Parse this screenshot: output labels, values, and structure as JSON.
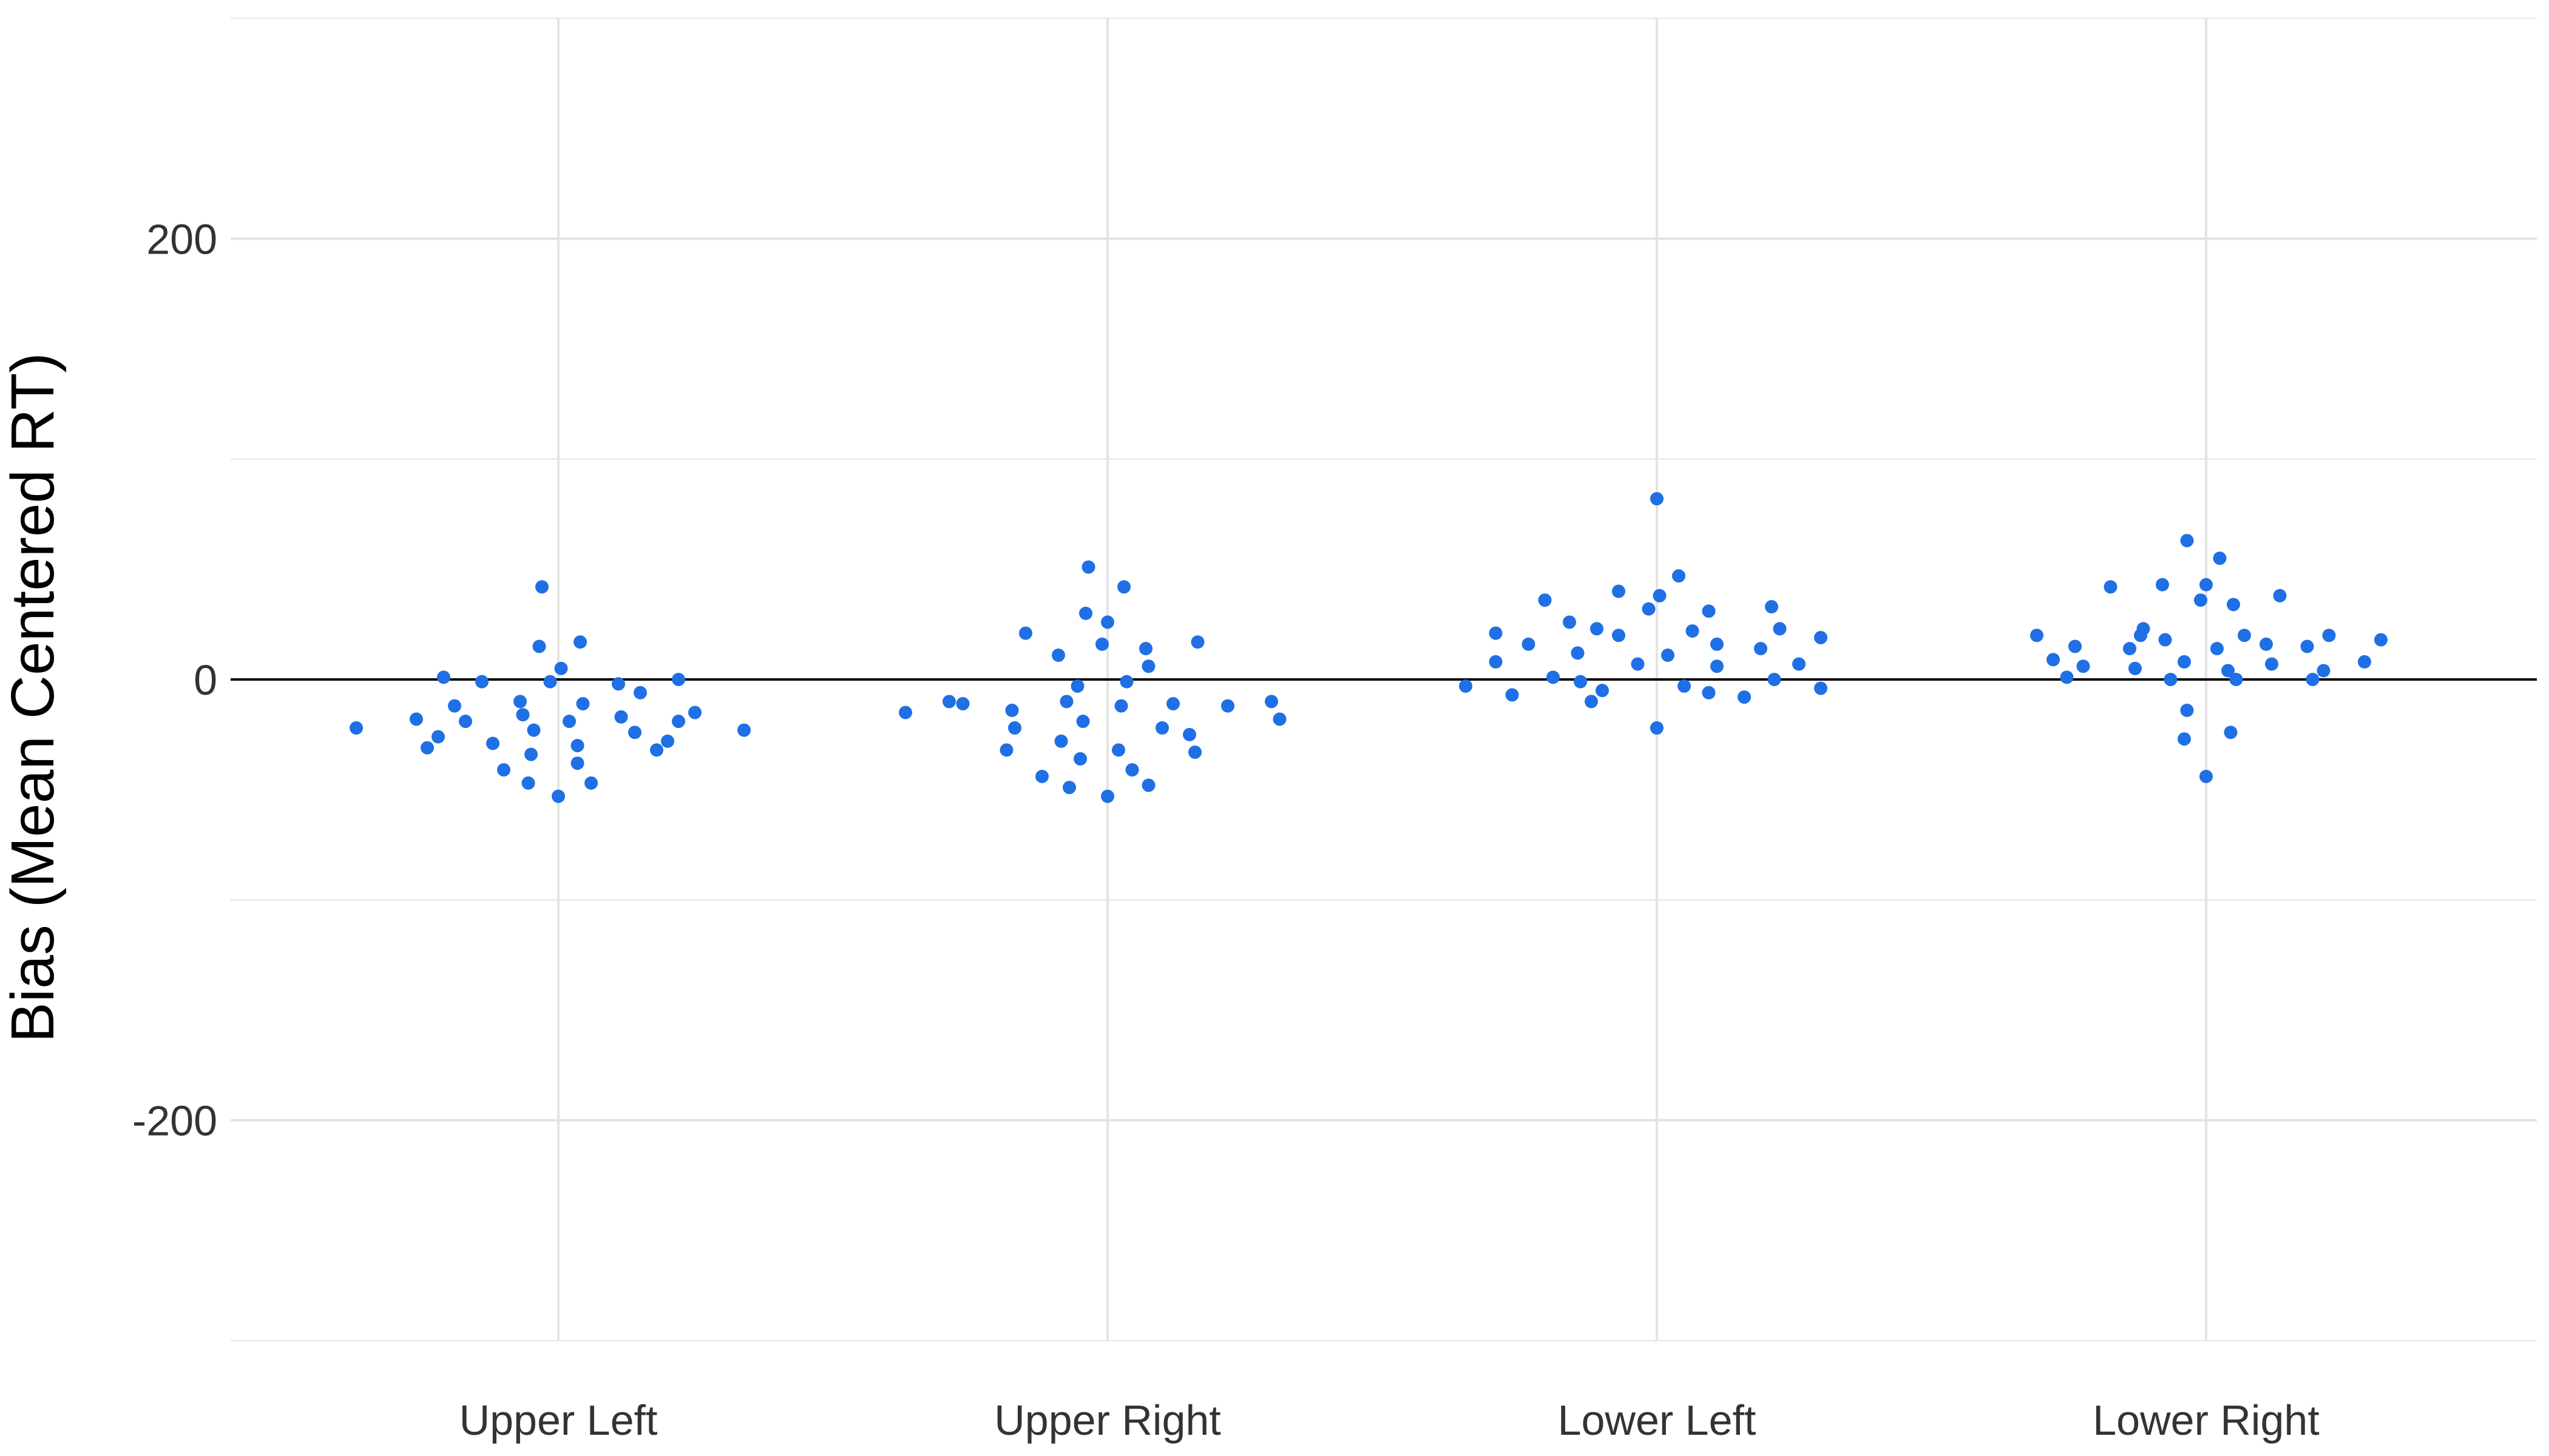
{
  "chart_data": {
    "type": "scatter",
    "title": "",
    "xlabel": "",
    "ylabel": "Bias (Mean Centered RT)",
    "ylim": [
      -300,
      300
    ],
    "yticks": [
      {
        "value": 200,
        "label": "200"
      },
      {
        "value": 0,
        "label": "0"
      },
      {
        "value": -200,
        "label": "-200"
      }
    ],
    "y_minor_gridlines": [
      300,
      100,
      -100,
      -300
    ],
    "reference_line": 0,
    "grid": true,
    "legend": "none",
    "point_color": "#1f6fe5",
    "categories": [
      "Upper Left",
      "Upper Right",
      "Lower Left",
      "Lower Right"
    ],
    "series": [
      {
        "category": "Upper Left",
        "points": [
          {
            "x": -0.37,
            "y": -22
          },
          {
            "x": -0.26,
            "y": -18
          },
          {
            "x": -0.24,
            "y": -31
          },
          {
            "x": -0.22,
            "y": -26
          },
          {
            "x": -0.21,
            "y": 1
          },
          {
            "x": -0.19,
            "y": -12
          },
          {
            "x": -0.17,
            "y": -19
          },
          {
            "x": -0.14,
            "y": -1
          },
          {
            "x": -0.12,
            "y": -29
          },
          {
            "x": -0.1,
            "y": -41
          },
          {
            "x": -0.07,
            "y": -10
          },
          {
            "x": -0.065,
            "y": -16
          },
          {
            "x": -0.055,
            "y": -47
          },
          {
            "x": -0.05,
            "y": -34
          },
          {
            "x": -0.045,
            "y": -23
          },
          {
            "x": -0.035,
            "y": 15
          },
          {
            "x": -0.03,
            "y": 42
          },
          {
            "x": -0.015,
            "y": -1
          },
          {
            "x": 0.005,
            "y": 5
          },
          {
            "x": 0.02,
            "y": -19
          },
          {
            "x": 0.035,
            "y": -30
          },
          {
            "x": 0.035,
            "y": -38
          },
          {
            "x": 0.04,
            "y": 17
          },
          {
            "x": 0.045,
            "y": -11
          },
          {
            "x": 0.06,
            "y": -47
          },
          {
            "x": 0.0,
            "y": -53
          },
          {
            "x": 0.11,
            "y": -2
          },
          {
            "x": 0.115,
            "y": -17
          },
          {
            "x": 0.14,
            "y": -24
          },
          {
            "x": 0.15,
            "y": -6
          },
          {
            "x": 0.18,
            "y": -32
          },
          {
            "x": 0.2,
            "y": -28
          },
          {
            "x": 0.22,
            "y": -19
          },
          {
            "x": 0.22,
            "y": 0
          },
          {
            "x": 0.25,
            "y": -15
          },
          {
            "x": 0.34,
            "y": -23
          }
        ]
      },
      {
        "category": "Upper Right",
        "points": [
          {
            "x": -0.37,
            "y": -15
          },
          {
            "x": -0.29,
            "y": -10
          },
          {
            "x": -0.265,
            "y": -11
          },
          {
            "x": -0.185,
            "y": -32
          },
          {
            "x": -0.175,
            "y": -14
          },
          {
            "x": -0.17,
            "y": -22
          },
          {
            "x": -0.15,
            "y": 21
          },
          {
            "x": -0.12,
            "y": -44
          },
          {
            "x": -0.09,
            "y": 11
          },
          {
            "x": -0.085,
            "y": -28
          },
          {
            "x": -0.075,
            "y": -10
          },
          {
            "x": -0.07,
            "y": -49
          },
          {
            "x": -0.055,
            "y": -3
          },
          {
            "x": -0.05,
            "y": -36
          },
          {
            "x": -0.045,
            "y": -19
          },
          {
            "x": -0.04,
            "y": 30
          },
          {
            "x": -0.035,
            "y": 51
          },
          {
            "x": -0.01,
            "y": 16
          },
          {
            "x": 0.0,
            "y": 26
          },
          {
            "x": 0.0,
            "y": -53
          },
          {
            "x": 0.02,
            "y": -32
          },
          {
            "x": 0.025,
            "y": -12
          },
          {
            "x": 0.03,
            "y": 42
          },
          {
            "x": 0.035,
            "y": -1
          },
          {
            "x": 0.045,
            "y": -41
          },
          {
            "x": 0.07,
            "y": 14
          },
          {
            "x": 0.075,
            "y": 6
          },
          {
            "x": 0.075,
            "y": -48
          },
          {
            "x": 0.1,
            "y": -22
          },
          {
            "x": 0.12,
            "y": -11
          },
          {
            "x": 0.15,
            "y": -25
          },
          {
            "x": 0.16,
            "y": -33
          },
          {
            "x": 0.165,
            "y": 17
          },
          {
            "x": 0.22,
            "y": -12
          },
          {
            "x": 0.3,
            "y": -10
          },
          {
            "x": 0.315,
            "y": -18
          }
        ]
      },
      {
        "category": "Lower Left",
        "points": [
          {
            "x": -0.35,
            "y": -3
          },
          {
            "x": -0.295,
            "y": 8
          },
          {
            "x": -0.295,
            "y": 21
          },
          {
            "x": -0.265,
            "y": -7
          },
          {
            "x": -0.235,
            "y": 16
          },
          {
            "x": -0.205,
            "y": 36
          },
          {
            "x": -0.19,
            "y": 1
          },
          {
            "x": -0.16,
            "y": 26
          },
          {
            "x": -0.145,
            "y": 12
          },
          {
            "x": -0.14,
            "y": -1
          },
          {
            "x": -0.12,
            "y": -10
          },
          {
            "x": -0.11,
            "y": 23
          },
          {
            "x": -0.1,
            "y": -5
          },
          {
            "x": -0.07,
            "y": 20
          },
          {
            "x": -0.07,
            "y": 40
          },
          {
            "x": -0.035,
            "y": 7
          },
          {
            "x": -0.015,
            "y": 32
          },
          {
            "x": 0.0,
            "y": 82
          },
          {
            "x": 0.0,
            "y": -22
          },
          {
            "x": 0.005,
            "y": 38
          },
          {
            "x": 0.02,
            "y": 11
          },
          {
            "x": 0.04,
            "y": 47
          },
          {
            "x": 0.05,
            "y": -3
          },
          {
            "x": 0.065,
            "y": 22
          },
          {
            "x": 0.095,
            "y": 31
          },
          {
            "x": 0.095,
            "y": -6
          },
          {
            "x": 0.11,
            "y": 6
          },
          {
            "x": 0.11,
            "y": 16
          },
          {
            "x": 0.16,
            "y": -8
          },
          {
            "x": 0.19,
            "y": 14
          },
          {
            "x": 0.21,
            "y": 33
          },
          {
            "x": 0.215,
            "y": 0
          },
          {
            "x": 0.225,
            "y": 23
          },
          {
            "x": 0.26,
            "y": 7
          },
          {
            "x": 0.3,
            "y": 19
          },
          {
            "x": 0.3,
            "y": -4
          }
        ]
      },
      {
        "category": "Lower Right",
        "points": [
          {
            "x": -0.31,
            "y": 20
          },
          {
            "x": -0.28,
            "y": 9
          },
          {
            "x": -0.255,
            "y": 1
          },
          {
            "x": -0.24,
            "y": 15
          },
          {
            "x": -0.225,
            "y": 6
          },
          {
            "x": -0.175,
            "y": 42
          },
          {
            "x": -0.14,
            "y": 14
          },
          {
            "x": -0.13,
            "y": 5
          },
          {
            "x": -0.12,
            "y": 20
          },
          {
            "x": -0.115,
            "y": 23
          },
          {
            "x": -0.08,
            "y": 43
          },
          {
            "x": -0.075,
            "y": 18
          },
          {
            "x": -0.065,
            "y": 0
          },
          {
            "x": -0.04,
            "y": 8
          },
          {
            "x": -0.04,
            "y": -27
          },
          {
            "x": -0.035,
            "y": 63
          },
          {
            "x": -0.035,
            "y": -14
          },
          {
            "x": -0.01,
            "y": 36
          },
          {
            "x": 0.0,
            "y": 43
          },
          {
            "x": 0.0,
            "y": -44
          },
          {
            "x": 0.02,
            "y": 14
          },
          {
            "x": 0.025,
            "y": 55
          },
          {
            "x": 0.04,
            "y": 4
          },
          {
            "x": 0.045,
            "y": -24
          },
          {
            "x": 0.05,
            "y": 34
          },
          {
            "x": 0.055,
            "y": 0
          },
          {
            "x": 0.07,
            "y": 20
          },
          {
            "x": 0.11,
            "y": 16
          },
          {
            "x": 0.12,
            "y": 7
          },
          {
            "x": 0.135,
            "y": 38
          },
          {
            "x": 0.185,
            "y": 15
          },
          {
            "x": 0.195,
            "y": 0
          },
          {
            "x": 0.215,
            "y": 4
          },
          {
            "x": 0.225,
            "y": 20
          },
          {
            "x": 0.29,
            "y": 8
          },
          {
            "x": 0.32,
            "y": 18
          }
        ]
      }
    ]
  }
}
